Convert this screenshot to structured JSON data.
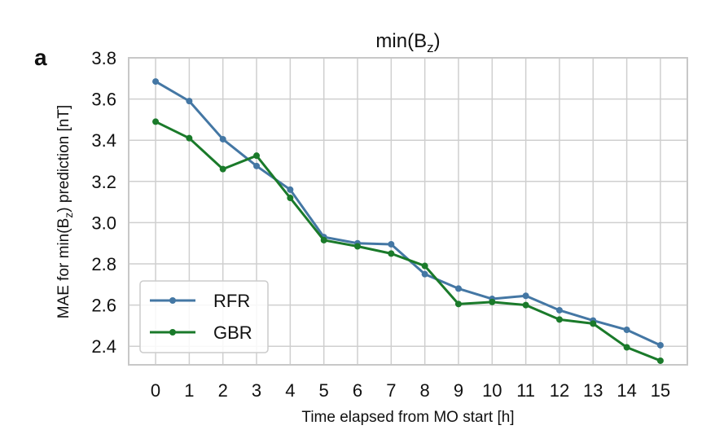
{
  "chart_data": {
    "type": "line",
    "panel_label": "a",
    "title": "min(B",
    "title_sub": "z",
    "title_end": ")",
    "xlabel": "Time elapsed from MO start [h]",
    "ylabel": "MAE for min(B",
    "ylabel_sub": "z",
    "ylabel_end": ") prediction [nT]",
    "x": [
      0,
      1,
      2,
      3,
      4,
      5,
      6,
      7,
      8,
      9,
      10,
      11,
      12,
      13,
      14,
      15
    ],
    "x_tick_labels": [
      "0",
      "1",
      "2",
      "3",
      "4",
      "5",
      "6",
      "7",
      "8",
      "9",
      "10",
      "11",
      "12",
      "13",
      "14",
      "15"
    ],
    "y_ticks": [
      2.4,
      2.6,
      2.8,
      3.0,
      3.2,
      3.4,
      3.6,
      3.8
    ],
    "y_tick_labels": [
      "2.4",
      "2.6",
      "2.8",
      "3.0",
      "3.2",
      "3.4",
      "3.6",
      "3.8"
    ],
    "xlim": [
      -0.8,
      15.8
    ],
    "ylim": [
      2.31,
      3.8
    ],
    "grid": true,
    "legend_position": "lower-left",
    "series": [
      {
        "name": "RFR",
        "color": "#4477a4",
        "values": [
          3.685,
          3.59,
          3.405,
          3.275,
          3.16,
          2.93,
          2.9,
          2.895,
          2.75,
          2.68,
          2.63,
          2.645,
          2.575,
          2.525,
          2.48,
          2.405
        ]
      },
      {
        "name": "GBR",
        "color": "#1a7a2a",
        "values": [
          3.49,
          3.41,
          3.26,
          3.325,
          3.12,
          2.915,
          2.885,
          2.85,
          2.79,
          2.605,
          2.615,
          2.6,
          2.53,
          2.51,
          2.395,
          2.33
        ]
      }
    ]
  }
}
